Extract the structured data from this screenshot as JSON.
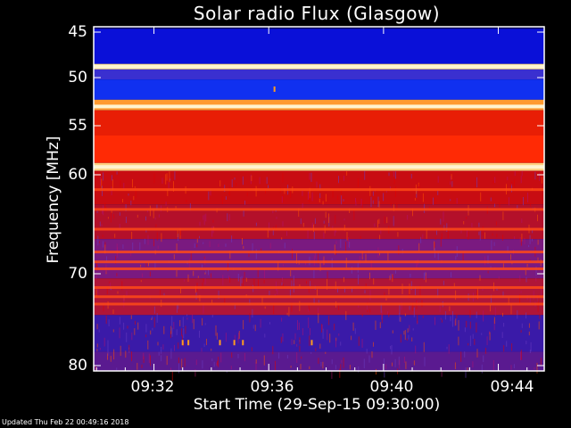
{
  "chart_data": {
    "type": "heatmap",
    "title": "Solar radio Flux (Glasgow)",
    "xlabel": "Start Time (29-Sep-15 09:30:00)",
    "ylabel": "Frequency [MHz]",
    "x_ticks": [
      "09:32",
      "09:36",
      "09:40",
      "09:44"
    ],
    "y_ticks": [
      "45",
      "50",
      "55",
      "60",
      "70",
      "80"
    ],
    "xlim_minutes_after_0930": [
      -0.1,
      15.6
    ],
    "ylim_mhz": [
      44.2,
      80.5
    ],
    "y_scale": "log-like",
    "colormap": [
      "#000066",
      "#1010ff",
      "#6a3dbf",
      "#b01070",
      "#e00000",
      "#ff5000",
      "#ffb000",
      "#fff0c0"
    ],
    "bands": [
      {
        "from": 44.5,
        "to": 48.5,
        "color": "#0a10d8"
      },
      {
        "from": 48.5,
        "to": 49.1,
        "color": "#ffe090"
      },
      {
        "from": 49.1,
        "to": 50.2,
        "color": "#3a30d0"
      },
      {
        "from": 50.2,
        "to": 52.3,
        "color": "#1030f0"
      },
      {
        "from": 52.3,
        "to": 53.4,
        "color": "#ff9a30"
      },
      {
        "from": 53.4,
        "to": 56.0,
        "color": "#e81e05"
      },
      {
        "from": 56.0,
        "to": 58.8,
        "color": "#ff2a05"
      },
      {
        "from": 58.8,
        "to": 59.6,
        "color": "#ffd080"
      },
      {
        "from": 59.6,
        "to": 63.0,
        "color": "#c80c12"
      },
      {
        "from": 63.0,
        "to": 66.5,
        "color": "#b4102a"
      },
      {
        "from": 66.5,
        "to": 70.5,
        "color": "#7a1a80"
      },
      {
        "from": 70.5,
        "to": 74.5,
        "color": "#b01538"
      },
      {
        "from": 74.5,
        "to": 78.5,
        "color": "#3a1aa8"
      },
      {
        "from": 78.5,
        "to": 80.5,
        "color": "#5a1a90"
      }
    ],
    "bright_lines_mhz": [
      48.8,
      53.0,
      59.2
    ],
    "banded_lines_mhz": [
      61.5,
      63.5,
      65.5,
      67.8,
      68.8,
      69.5,
      71.5,
      72.5,
      73.3
    ],
    "bursts": [
      {
        "t": 6.2,
        "f": 51.2
      },
      {
        "t": 3.0,
        "f": 77.5
      },
      {
        "t": 3.2,
        "f": 77.5
      },
      {
        "t": 4.3,
        "f": 77.5
      },
      {
        "t": 4.8,
        "f": 77.5
      },
      {
        "t": 5.1,
        "f": 77.5
      },
      {
        "t": 7.5,
        "f": 77.5
      }
    ]
  },
  "footer": "Updated Thu Feb 22 00:49:16 2018"
}
